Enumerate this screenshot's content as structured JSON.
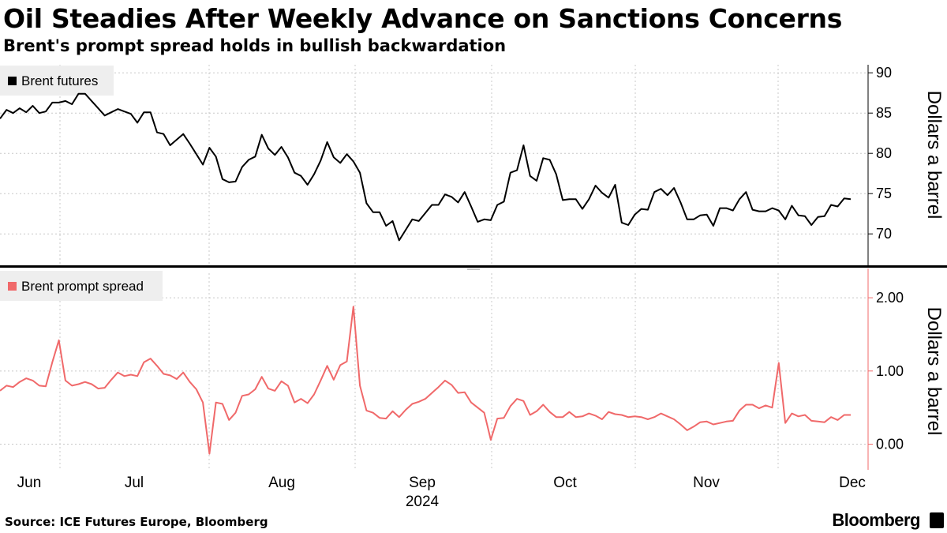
{
  "header": {
    "title": "Oil Steadies After Weekly Advance on Sanctions Concerns",
    "subtitle": "Brent's prompt spread holds in bullish backwardation"
  },
  "footer": {
    "source": "Source: ICE Futures Europe, Bloomberg",
    "brand": "Bloomberg"
  },
  "colors": {
    "futures_line": "#000000",
    "spread_line": "#f0696a",
    "grid": "#c8c8c8",
    "legend_bg": "#eeeeee"
  },
  "chart_data": [
    {
      "type": "line",
      "title": "Brent's prompt spread holds in bullish backwardation",
      "ylabel": "Dollars a barrel",
      "ylim": [
        66,
        91
      ],
      "yticks": [
        70,
        75,
        80,
        85,
        90
      ],
      "ytick_labels": [
        "70",
        "75",
        "80",
        "85",
        "90"
      ],
      "legend": "top-left",
      "series": [
        {
          "name": "Brent futures",
          "values": [
            84.3,
            85.4,
            85.0,
            85.6,
            85.1,
            85.9,
            85.0,
            85.2,
            86.3,
            86.3,
            86.5,
            86.1,
            87.4,
            87.4,
            86.5,
            85.6,
            84.7,
            85.1,
            85.5,
            85.2,
            84.9,
            83.8,
            85.1,
            85.1,
            82.6,
            82.4,
            81.0,
            81.7,
            82.4,
            81.2,
            79.9,
            78.6,
            80.7,
            79.6,
            76.8,
            76.4,
            76.5,
            78.3,
            79.2,
            79.6,
            82.3,
            80.6,
            79.8,
            80.8,
            79.5,
            77.6,
            77.2,
            76.1,
            77.4,
            79.1,
            81.4,
            79.5,
            78.8,
            79.9,
            79.0,
            77.6,
            73.8,
            72.7,
            72.7,
            71.0,
            71.6,
            69.2,
            70.5,
            71.8,
            71.6,
            72.6,
            73.6,
            73.6,
            74.9,
            74.6,
            73.9,
            75.2,
            73.4,
            71.5,
            71.8,
            71.7,
            73.6,
            74.0,
            77.6,
            77.9,
            81.0,
            77.2,
            76.6,
            79.4,
            79.2,
            77.4,
            74.2,
            74.3,
            74.3,
            73.1,
            74.3,
            76.0,
            75.1,
            74.5,
            76.1,
            71.4,
            71.1,
            72.4,
            73.1,
            73.0,
            75.2,
            75.6,
            74.8,
            75.7,
            73.9,
            71.8,
            71.8,
            72.3,
            72.4,
            71.0,
            73.2,
            73.2,
            72.9,
            74.3,
            75.2,
            73.0,
            72.8,
            72.8,
            73.2,
            72.9,
            71.8,
            73.5,
            72.3,
            72.2,
            71.1,
            72.1,
            72.2,
            73.6,
            73.4,
            74.4,
            74.3
          ]
        }
      ]
    },
    {
      "type": "line",
      "ylabel": "Dollars a barrel",
      "ylim": [
        -0.35,
        2.4
      ],
      "yticks": [
        0,
        1,
        2
      ],
      "ytick_labels": [
        "0.00",
        "1.00",
        "2.00"
      ],
      "legend": "top-left",
      "series": [
        {
          "name": "Brent prompt spread",
          "values": [
            0.73,
            0.8,
            0.78,
            0.85,
            0.9,
            0.87,
            0.8,
            0.79,
            1.12,
            1.42,
            0.87,
            0.8,
            0.82,
            0.85,
            0.82,
            0.76,
            0.77,
            0.88,
            0.98,
            0.93,
            0.95,
            0.93,
            1.12,
            1.17,
            1.07,
            0.96,
            0.94,
            0.89,
            0.98,
            0.85,
            0.75,
            0.57,
            -0.13,
            0.57,
            0.55,
            0.33,
            0.43,
            0.66,
            0.68,
            0.75,
            0.92,
            0.76,
            0.73,
            0.86,
            0.8,
            0.57,
            0.62,
            0.56,
            0.68,
            0.87,
            1.07,
            0.88,
            1.08,
            1.13,
            1.88,
            0.8,
            0.46,
            0.43,
            0.36,
            0.35,
            0.45,
            0.37,
            0.47,
            0.55,
            0.58,
            0.62,
            0.7,
            0.78,
            0.87,
            0.81,
            0.7,
            0.71,
            0.57,
            0.5,
            0.43,
            0.06,
            0.35,
            0.36,
            0.52,
            0.62,
            0.59,
            0.4,
            0.45,
            0.54,
            0.44,
            0.37,
            0.37,
            0.44,
            0.37,
            0.38,
            0.42,
            0.39,
            0.34,
            0.44,
            0.41,
            0.4,
            0.37,
            0.38,
            0.37,
            0.34,
            0.37,
            0.42,
            0.38,
            0.34,
            0.27,
            0.19,
            0.24,
            0.3,
            0.31,
            0.27,
            0.29,
            0.31,
            0.32,
            0.46,
            0.54,
            0.54,
            0.49,
            0.53,
            0.5,
            1.11,
            0.29,
            0.42,
            0.38,
            0.4,
            0.32,
            0.31,
            0.3,
            0.37,
            0.33,
            0.4,
            0.4
          ]
        }
      ]
    }
  ],
  "x_axis": {
    "month_labels": [
      "Jun",
      "Jul",
      "Aug",
      "Sep",
      "Oct",
      "Nov",
      "Dec"
    ],
    "year_label": "2024",
    "year_under": "Sep"
  }
}
